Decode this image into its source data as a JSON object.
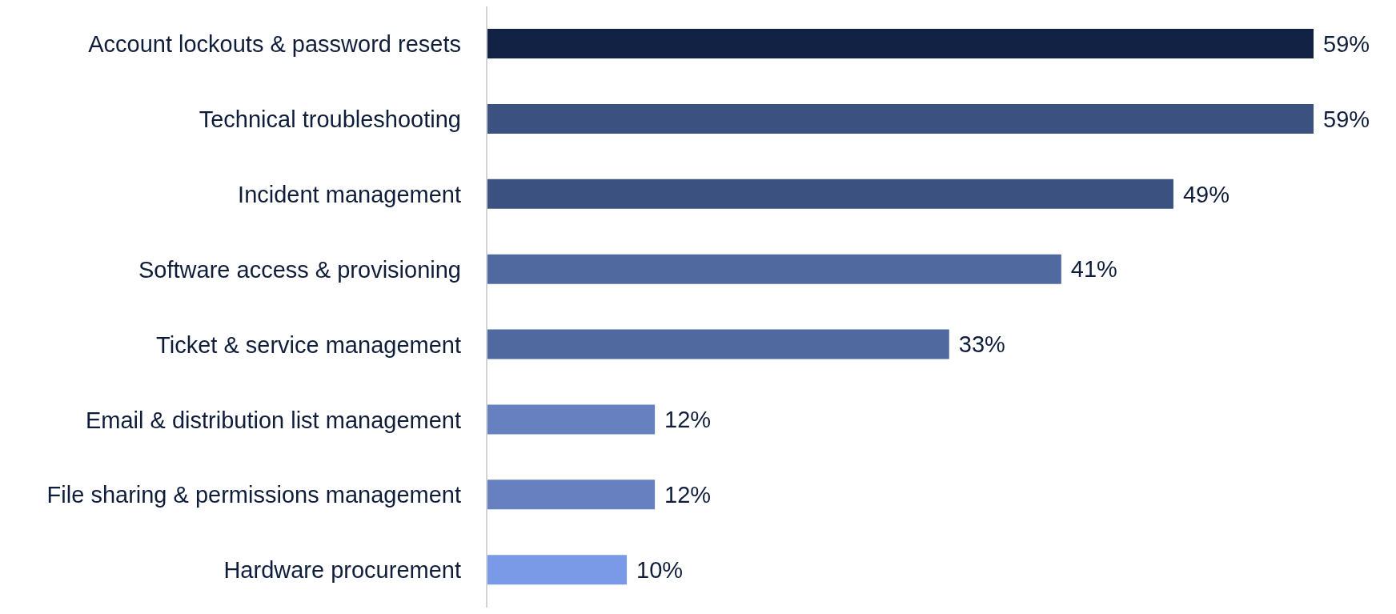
{
  "chart_data": {
    "type": "bar",
    "orientation": "horizontal",
    "categories": [
      "Account lockouts & password resets",
      "Technical troubleshooting",
      "Incident management",
      "Software access & provisioning",
      "Ticket & service management",
      "Email & distribution list management",
      "File sharing & permissions management",
      "Hardware procurement"
    ],
    "values": [
      59,
      59,
      49,
      41,
      33,
      12,
      12,
      10
    ],
    "value_labels": [
      "59%",
      "59%",
      "49%",
      "41%",
      "33%",
      "12%",
      "12%",
      "10%"
    ],
    "colors": [
      "#112244",
      "#3b5280",
      "#3b5280",
      "#506aa0",
      "#506aa0",
      "#6680c0",
      "#6680c0",
      "#7a9ae8"
    ],
    "tick_labels": "y"
  }
}
